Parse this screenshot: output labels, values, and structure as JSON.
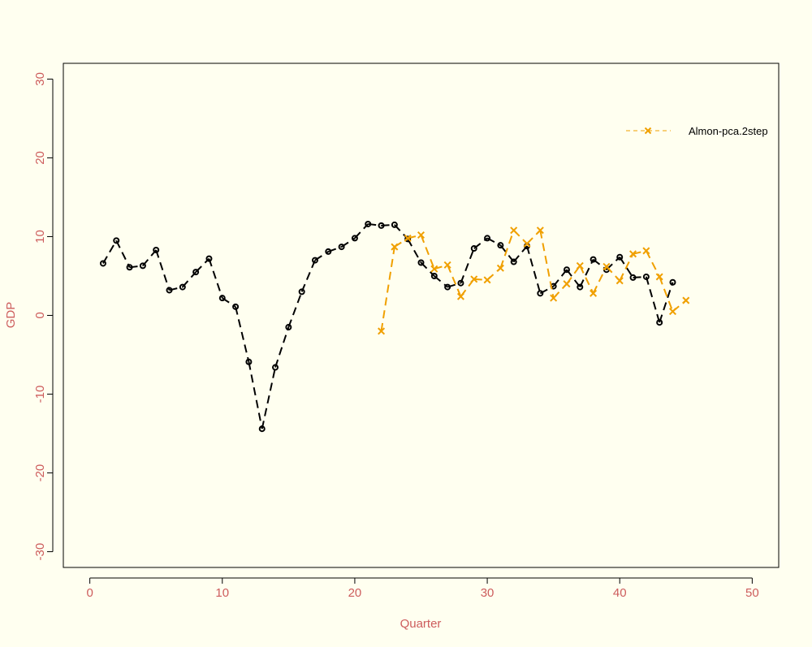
{
  "colors": {
    "background": "#fffff0",
    "axis_text": "#cd5c5c",
    "actual_series": "#000000",
    "forecast_series": "#f0a000"
  },
  "chart_data": {
    "type": "line",
    "title": "",
    "xlabel": "Quarter",
    "ylabel": "GDP",
    "xlim": [
      -2,
      52
    ],
    "ylim": [
      -32,
      32
    ],
    "x_ticks": [
      0,
      10,
      20,
      30,
      40,
      50
    ],
    "y_ticks": [
      -30,
      -20,
      -10,
      0,
      10,
      20,
      30
    ],
    "grid": false,
    "legend_position": "top-right",
    "series": [
      {
        "name": "",
        "role": "actual",
        "line": "dashed",
        "marker": "circle",
        "color": "#000000",
        "x": [
          1,
          2,
          3,
          4,
          5,
          6,
          7,
          8,
          9,
          10,
          11,
          12,
          13,
          14,
          15,
          16,
          17,
          18,
          19,
          20,
          21,
          22,
          23,
          24,
          25,
          26,
          27,
          28,
          29,
          30,
          31,
          32,
          33,
          34,
          35,
          36,
          37,
          38,
          39,
          40,
          41,
          42,
          43,
          44
        ],
        "y": [
          6.6,
          9.5,
          6.1,
          6.3,
          8.3,
          3.2,
          3.6,
          5.5,
          7.2,
          2.2,
          1.1,
          -5.9,
          -14.4,
          -6.6,
          -1.5,
          3.0,
          7.0,
          8.1,
          8.7,
          9.8,
          11.6,
          11.4,
          11.5,
          9.7,
          6.7,
          5.0,
          3.6,
          4.1,
          8.5,
          9.8,
          8.9,
          6.8,
          8.8,
          2.8,
          3.7,
          5.8,
          3.6,
          7.1,
          5.8,
          7.4,
          4.8,
          4.9,
          -0.9,
          4.2
        ]
      },
      {
        "name": "Almon-pca.2step",
        "role": "forecast",
        "line": "dashed",
        "marker": "x",
        "color": "#f0a000",
        "x": [
          22,
          23,
          24,
          25,
          26,
          27,
          28,
          29,
          30,
          31,
          32,
          33,
          34,
          35,
          36,
          37,
          38,
          39,
          40,
          41,
          42,
          43,
          44,
          45
        ],
        "y": [
          -2.0,
          8.7,
          9.8,
          10.2,
          5.9,
          6.4,
          2.4,
          4.6,
          4.5,
          6.0,
          10.8,
          9.1,
          10.8,
          2.2,
          4.0,
          6.3,
          2.8,
          6.2,
          4.4,
          7.8,
          8.2,
          4.9,
          0.5,
          1.9
        ]
      }
    ]
  }
}
